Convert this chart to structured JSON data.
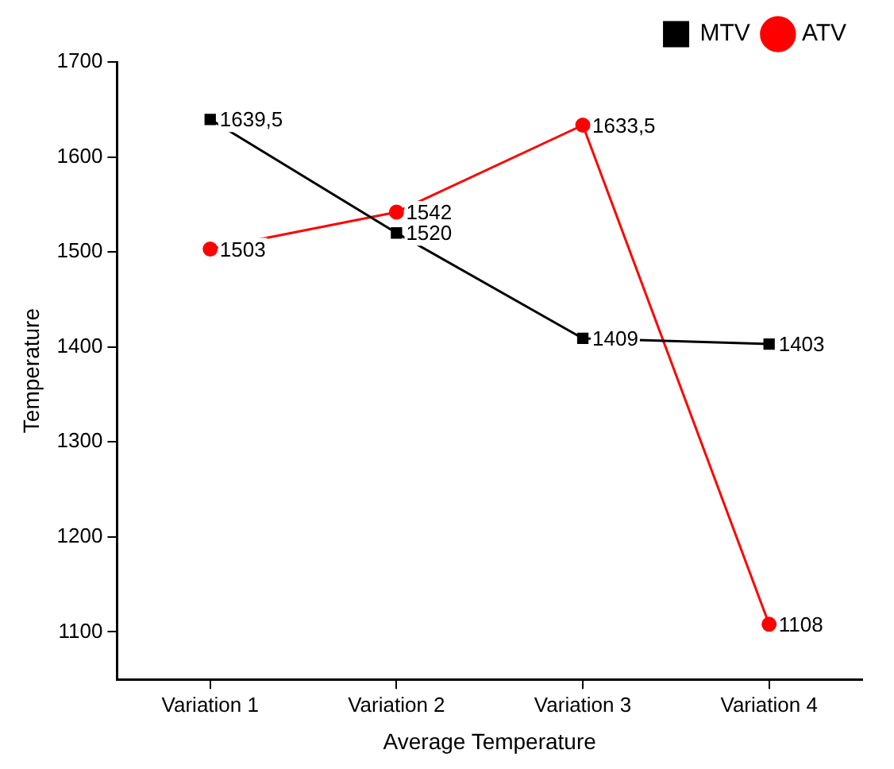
{
  "chart_data": {
    "type": "line",
    "xlabel": "Average Temperature",
    "ylabel": "Temperature",
    "categories": [
      "Variation 1",
      "Variation 2",
      "Variation 3",
      "Variation 4"
    ],
    "series": [
      {
        "name": "MTV",
        "color": "#000000",
        "marker": "square",
        "values": [
          1639.5,
          1520,
          1409,
          1403
        ],
        "value_labels": [
          "1639,5",
          "1520",
          "1409",
          "1403"
        ]
      },
      {
        "name": "ATV",
        "color": "#ff0000",
        "marker": "circle",
        "values": [
          1503,
          1542,
          1633.5,
          1108
        ],
        "value_labels": [
          "1503",
          "1542",
          "1633,5",
          "1108"
        ]
      }
    ],
    "ylim": [
      1050,
      1700
    ],
    "yticks": [
      1100,
      1200,
      1300,
      1400,
      1500,
      1600,
      1700
    ],
    "grid": false,
    "legend": "top right",
    "line_style": "solid"
  }
}
